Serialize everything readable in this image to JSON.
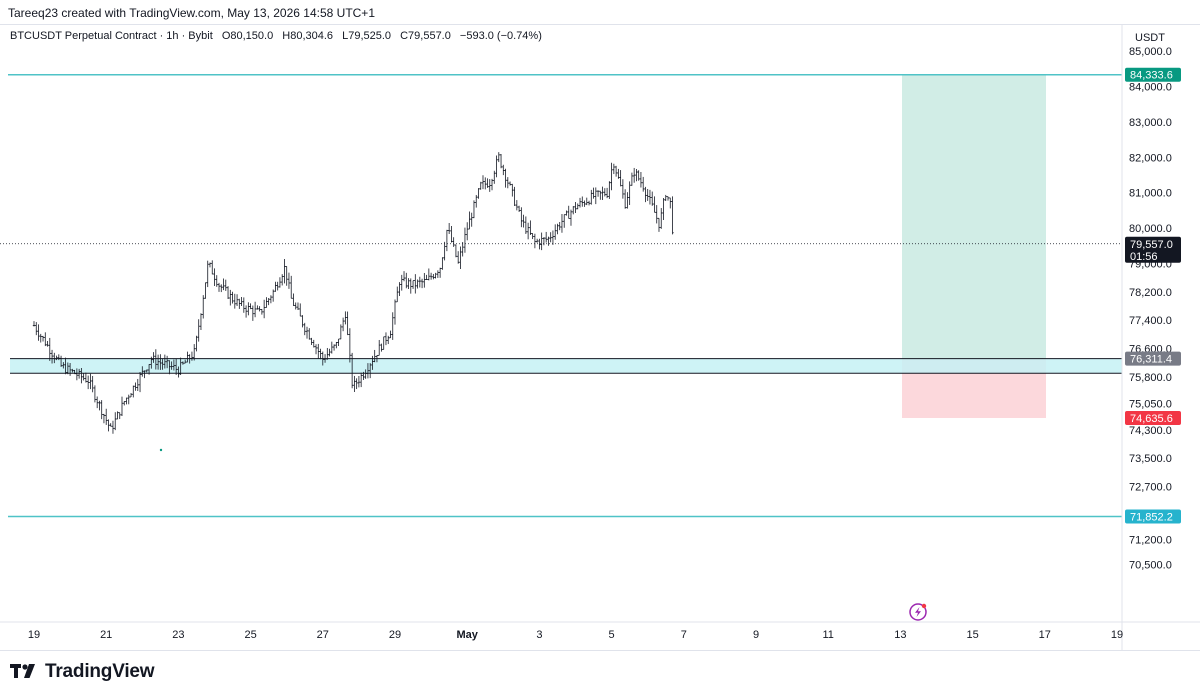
{
  "header": {
    "text": "Tareeq23 created with TradingView.com, May 13, 2026 14:58 UTC+1"
  },
  "legend": {
    "symbol": "BTCUSDT Perpetual Contract · 1h · Bybit",
    "open": "O80,150.0",
    "high": "H80,304.6",
    "low": "L79,525.0",
    "close": "C79,557.0",
    "change": "−593.0 (−0.74%)"
  },
  "footer": {
    "brand": "TradingView"
  },
  "colors": {
    "candle": "#131722",
    "level_line": "#4fc3c7",
    "zone_fill": "#c6f1f4",
    "profit": "#d1ede6",
    "loss": "#fcd8dc",
    "tag_green": "#089981",
    "tag_red": "#f23645",
    "tag_gray": "#787b86",
    "tag_cyan": "#26b3cd",
    "tag_black": "#131722"
  },
  "chart_data": {
    "type": "candlestick",
    "currency_label": "USDT",
    "y_ticks": [
      "85,000.0",
      "84,000.0",
      "83,000.0",
      "82,000.0",
      "81,000.0",
      "80,000.0",
      "79,000.0",
      "78,200.0",
      "77,400.0",
      "76,600.0",
      "75,800.0",
      "75,050.0",
      "74,300.0",
      "73,500.0",
      "72,700.0",
      "71,200.0",
      "70,500.0"
    ],
    "x_ticks": [
      "19",
      "21",
      "23",
      "25",
      "27",
      "29",
      "May",
      "3",
      "5",
      "7",
      "9",
      "11",
      "13",
      "15",
      "17",
      "19"
    ],
    "ylim": [
      70000,
      85300
    ],
    "price_path": [
      {
        "t": 0,
        "p": 77250
      },
      {
        "t": 3,
        "p": 76100
      },
      {
        "t": 6,
        "p": 75700
      },
      {
        "t": 8.5,
        "p": 74300
      },
      {
        "t": 10,
        "p": 75100
      },
      {
        "t": 13,
        "p": 76300
      },
      {
        "t": 16,
        "p": 76000
      },
      {
        "t": 17.8,
        "p": 76500
      },
      {
        "t": 19.3,
        "p": 79000
      },
      {
        "t": 20.5,
        "p": 78400
      },
      {
        "t": 22,
        "p": 78000
      },
      {
        "t": 23,
        "p": 77800
      },
      {
        "t": 25,
        "p": 77600
      },
      {
        "t": 26.5,
        "p": 78200
      },
      {
        "t": 27.8,
        "p": 78900
      },
      {
        "t": 28.5,
        "p": 78000
      },
      {
        "t": 30,
        "p": 77200
      },
      {
        "t": 32,
        "p": 76300
      },
      {
        "t": 33.5,
        "p": 76700
      },
      {
        "t": 34.5,
        "p": 77600
      },
      {
        "t": 35.3,
        "p": 75500
      },
      {
        "t": 36.5,
        "p": 75900
      },
      {
        "t": 38,
        "p": 76500
      },
      {
        "t": 39.5,
        "p": 77100
      },
      {
        "t": 40.5,
        "p": 78500
      },
      {
        "t": 42,
        "p": 78400
      },
      {
        "t": 43.5,
        "p": 78500
      },
      {
        "t": 45,
        "p": 78900
      },
      {
        "t": 45.8,
        "p": 80000
      },
      {
        "t": 47,
        "p": 79000
      },
      {
        "t": 48,
        "p": 80000
      },
      {
        "t": 49.5,
        "p": 81200
      },
      {
        "t": 50.5,
        "p": 81300
      },
      {
        "t": 51.5,
        "p": 82000
      },
      {
        "t": 52.8,
        "p": 81100
      },
      {
        "t": 54,
        "p": 80200
      },
      {
        "t": 55.5,
        "p": 79600
      },
      {
        "t": 57,
        "p": 79700
      },
      {
        "t": 58.5,
        "p": 80200
      },
      {
        "t": 60,
        "p": 80600
      },
      {
        "t": 62,
        "p": 80900
      },
      {
        "t": 63.5,
        "p": 81000
      },
      {
        "t": 64.2,
        "p": 81900
      },
      {
        "t": 65.5,
        "p": 80700
      },
      {
        "t": 66.5,
        "p": 81600
      },
      {
        "t": 67.5,
        "p": 81200
      },
      {
        "t": 68.5,
        "p": 80600
      },
      {
        "t": 69.3,
        "p": 80100
      },
      {
        "t": 70,
        "p": 81000
      },
      {
        "t": 70.5,
        "p": 80700
      },
      {
        "t": 70.9,
        "p": 79557
      }
    ],
    "levels": {
      "upper_line": 84333.6,
      "lower_line": 71852.2,
      "zone_top": 76311.4,
      "zone_bottom": 75900,
      "current_price": 79557.0
    },
    "position": {
      "entry": 76311.4,
      "target": 84333.6,
      "stop": 74635.6
    },
    "tags": {
      "upper": "84,333.6",
      "current": "79,557.0",
      "countdown": "01:56",
      "entry": "76,311.4",
      "stop": "74,635.6",
      "lower": "71,852.2"
    }
  }
}
